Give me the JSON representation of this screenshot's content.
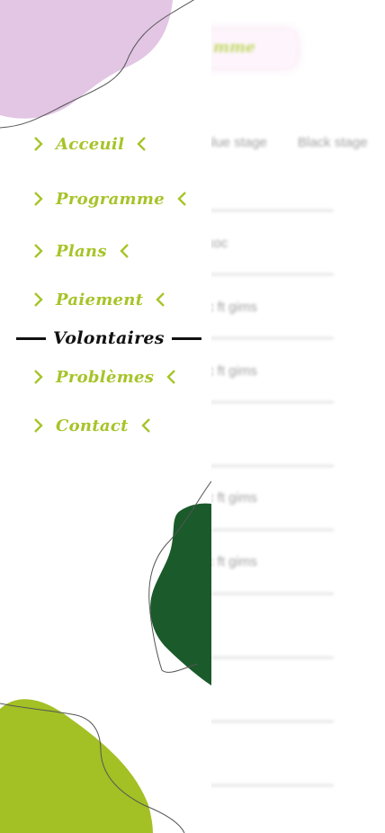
{
  "background": {
    "tab_label": "mme",
    "stages": [
      "Blue stage",
      "Black stage"
    ],
    "rows": [
      "koc",
      "c ft gims",
      "c ft gims",
      "",
      "c ft gims",
      "c ft gims",
      "",
      "",
      "",
      ""
    ]
  },
  "menu": {
    "items": [
      {
        "label": "Acceuil",
        "active": false
      },
      {
        "label": "Programme",
        "active": false
      },
      {
        "label": "Plans",
        "active": false
      },
      {
        "label": "Paiement",
        "active": false
      },
      {
        "label": "Volontaires",
        "active": true
      },
      {
        "label": "Problèmes",
        "active": false
      },
      {
        "label": "Contact",
        "active": false
      }
    ]
  },
  "colors": {
    "accent": "#a6c429",
    "active_text": "#111111",
    "blob_pink": "#e2c6e4",
    "blob_green": "#a3c024",
    "blob_dark_green": "#1b5a2a"
  },
  "icons": {
    "left_chevron": "chevron-right-icon",
    "right_chevron": "chevron-left-icon"
  }
}
